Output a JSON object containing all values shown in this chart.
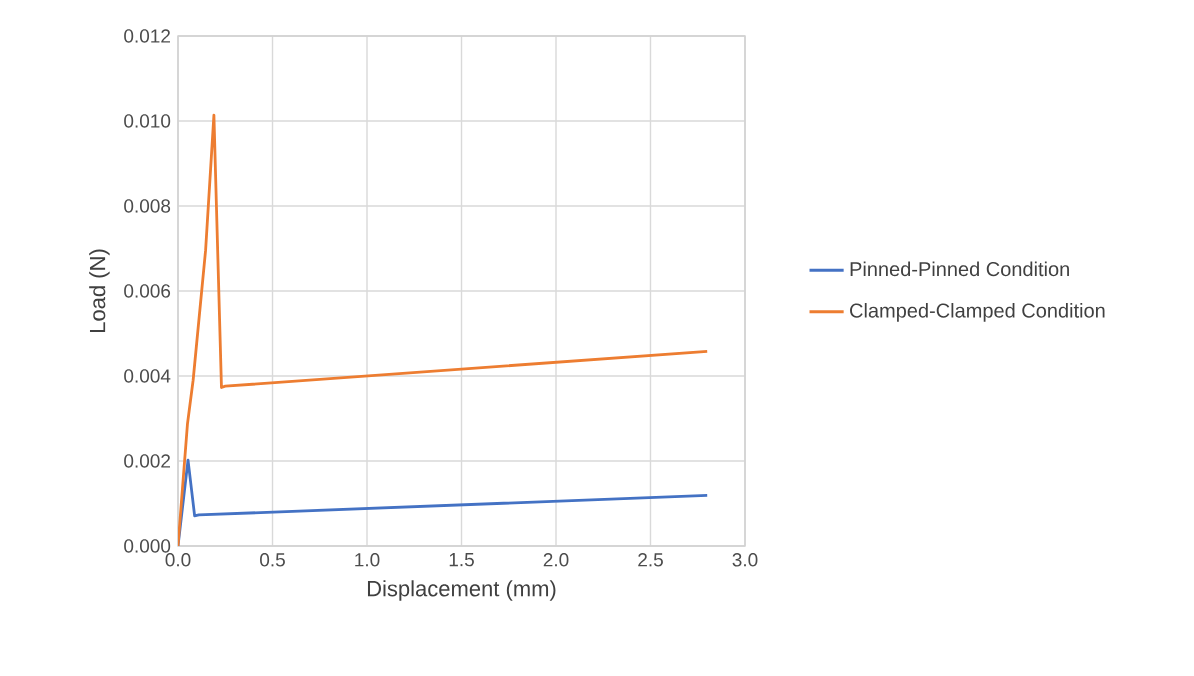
{
  "chart_data": {
    "type": "line",
    "xlabel": "Displacement (mm)",
    "ylabel": "Load (N)",
    "xlim": [
      0,
      3
    ],
    "ylim": [
      0,
      0.012
    ],
    "xticks": [
      {
        "value": 0,
        "label": "0.0"
      },
      {
        "value": 0.5,
        "label": "0.5"
      },
      {
        "value": 1,
        "label": "1.0"
      },
      {
        "value": 1.5,
        "label": "1.5"
      },
      {
        "value": 2,
        "label": "2.0"
      },
      {
        "value": 2.5,
        "label": "2.5"
      },
      {
        "value": 3,
        "label": "3.0"
      }
    ],
    "yticks": [
      {
        "value": 0,
        "label": "0.000"
      },
      {
        "value": 0.002,
        "label": "0.002"
      },
      {
        "value": 0.004,
        "label": "0.004"
      },
      {
        "value": 0.006,
        "label": "0.006"
      },
      {
        "value": 0.008,
        "label": "0.008"
      },
      {
        "value": 0.01,
        "label": "0.010"
      },
      {
        "value": 0.012,
        "label": "0.012"
      }
    ],
    "grid": true,
    "legend": "right",
    "marker": "none",
    "line_style": "solid",
    "series": [
      {
        "name": "Pinned-Pinned Condition",
        "color": "#4472c4",
        "x": [
          0,
          0.053,
          0.088,
          0.11,
          2.8
        ],
        "values": [
          0,
          0.00202,
          0.00071,
          0.00073,
          0.00119
        ]
      },
      {
        "name": "Clamped-Clamped Condition",
        "color": "#ed7d31",
        "x": [
          0,
          0.05,
          0.08,
          0.146,
          0.19,
          0.23,
          0.25,
          2.8
        ],
        "values": [
          0,
          0.00287,
          0.0039,
          0.00696,
          0.01014,
          0.00373,
          0.00376,
          0.00458
        ]
      }
    ]
  }
}
